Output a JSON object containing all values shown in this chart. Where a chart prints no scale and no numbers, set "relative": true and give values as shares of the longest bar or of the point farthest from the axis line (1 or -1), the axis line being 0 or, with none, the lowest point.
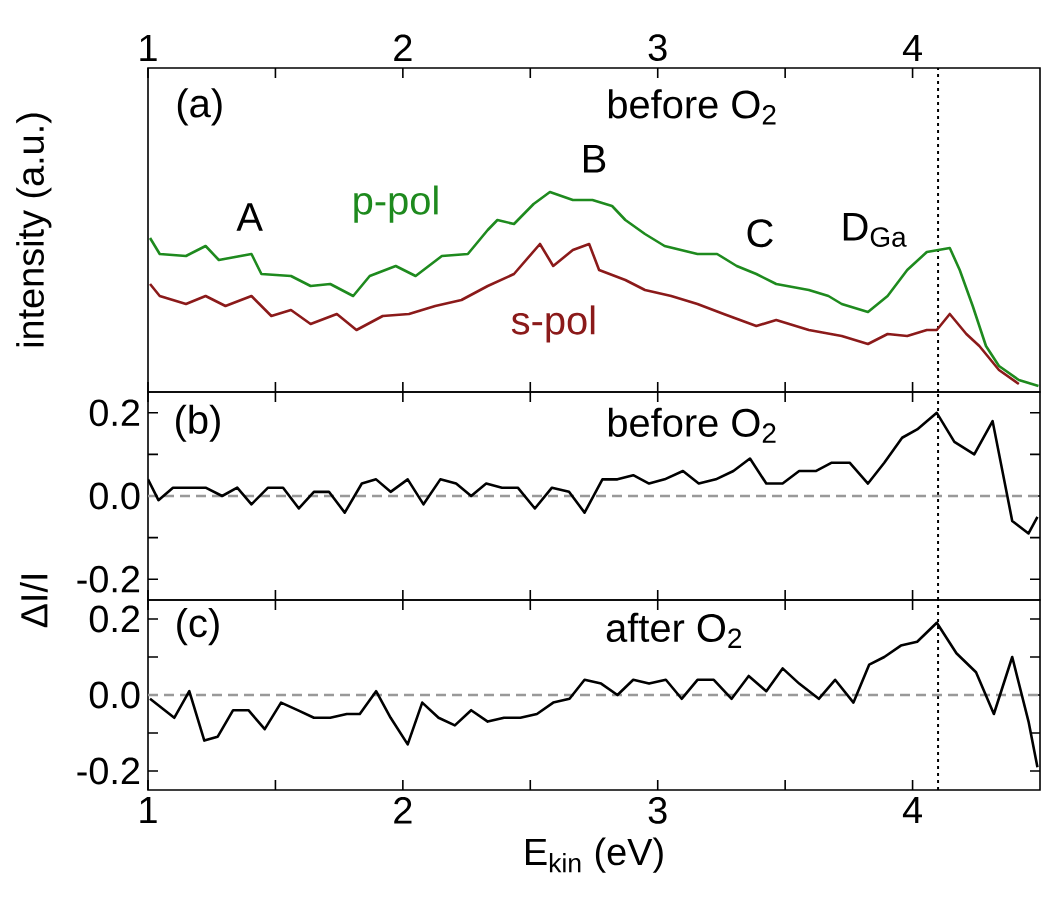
{
  "chart_data": [
    {
      "type": "line",
      "relative": true,
      "ylabel": "intensity (a.u.)",
      "xlim": [
        1,
        4.5
      ],
      "xticks": [
        1,
        {
          "value": 1.5,
          "label": null
        },
        2,
        {
          "value": 2.5,
          "label": null
        },
        3,
        {
          "value": 3.5,
          "label": null
        },
        4
      ],
      "annotations": [
        "(a)",
        "before O$_{2}$",
        "A",
        "B",
        "C",
        "D$_{Ga}$"
      ],
      "ref_lines": [
        {
          "axis": "x",
          "value": 4.1,
          "line_style": "dotted",
          "color": "#000000"
        }
      ],
      "series": [
        {
          "name": "p-pol",
          "color": "#1e8a1e",
          "x": [
            1.008,
            1.046,
            1.149,
            1.226,
            1.278,
            1.406,
            1.445,
            1.561,
            1.638,
            1.715,
            1.805,
            1.87,
            1.972,
            2.05,
            2.153,
            2.255,
            2.333,
            2.371,
            2.436,
            2.513,
            2.577,
            2.667,
            2.744,
            2.821,
            2.873,
            2.95,
            3.027,
            3.156,
            3.233,
            3.31,
            3.387,
            3.465,
            3.593,
            3.67,
            3.722,
            3.825,
            3.902,
            3.979,
            4.056,
            4.146,
            4.185,
            4.236,
            4.288,
            4.339,
            4.417,
            4.494
          ],
          "values": [
            0.77,
            0.69,
            0.68,
            0.73,
            0.66,
            0.69,
            0.59,
            0.58,
            0.53,
            0.54,
            0.48,
            0.58,
            0.63,
            0.58,
            0.68,
            0.69,
            0.81,
            0.86,
            0.84,
            0.94,
            1.0,
            0.96,
            0.96,
            0.93,
            0.86,
            0.79,
            0.73,
            0.69,
            0.69,
            0.63,
            0.59,
            0.54,
            0.51,
            0.48,
            0.44,
            0.4,
            0.48,
            0.61,
            0.7,
            0.72,
            0.61,
            0.43,
            0.23,
            0.13,
            0.06,
            0.03
          ]
        },
        {
          "name": "s-pol",
          "color": "#8b1a1a",
          "x": [
            1.008,
            1.046,
            1.149,
            1.226,
            1.304,
            1.406,
            1.484,
            1.561,
            1.638,
            1.741,
            1.818,
            1.921,
            2.024,
            2.127,
            2.23,
            2.333,
            2.436,
            2.538,
            2.59,
            2.667,
            2.731,
            2.77,
            2.873,
            2.95,
            3.053,
            3.156,
            3.259,
            3.387,
            3.465,
            3.593,
            3.722,
            3.825,
            3.902,
            3.979,
            4.056,
            4.095,
            4.146,
            4.211,
            4.262,
            4.339,
            4.417
          ],
          "values": [
            0.54,
            0.48,
            0.44,
            0.48,
            0.43,
            0.48,
            0.38,
            0.41,
            0.34,
            0.39,
            0.31,
            0.38,
            0.39,
            0.43,
            0.46,
            0.53,
            0.59,
            0.74,
            0.63,
            0.71,
            0.74,
            0.61,
            0.56,
            0.51,
            0.48,
            0.44,
            0.39,
            0.33,
            0.36,
            0.31,
            0.28,
            0.24,
            0.29,
            0.28,
            0.31,
            0.31,
            0.39,
            0.29,
            0.23,
            0.11,
            0.04
          ]
        }
      ]
    },
    {
      "type": "line",
      "tick_labels": "y",
      "ylabel": "ΔI/I",
      "xlim": [
        1,
        4.5
      ],
      "ylim": [
        -0.25,
        0.25
      ],
      "xticks": [
        1,
        {
          "value": 1.5,
          "label": null
        },
        2,
        {
          "value": 2.5,
          "label": null
        },
        3,
        {
          "value": 3.5,
          "label": null
        },
        4
      ],
      "yticks": [
        {
          "value": -0.2,
          "label": "-0.2"
        },
        {
          "value": -0.1,
          "label": null
        },
        {
          "value": 0,
          "label": "0.0"
        },
        {
          "value": 0.1,
          "label": null
        },
        {
          "value": 0.2,
          "label": "0.2"
        }
      ],
      "annotations": [
        "(b)",
        "before O$_{2}$"
      ],
      "ref_lines": [
        {
          "axis": "x",
          "value": 4.1,
          "line_style": "dotted",
          "color": "#000000"
        },
        {
          "axis": "y",
          "value": 0,
          "line_style": "dashed",
          "color": "#999999"
        }
      ],
      "series": [
        {
          "color": "#000000",
          "x": [
            1.0,
            1.041,
            1.098,
            1.162,
            1.226,
            1.291,
            1.35,
            1.406,
            1.471,
            1.53,
            1.592,
            1.651,
            1.71,
            1.772,
            1.839,
            1.895,
            1.952,
            2.019,
            2.081,
            2.147,
            2.209,
            2.268,
            2.327,
            2.389,
            2.451,
            2.518,
            2.585,
            2.652,
            2.713,
            2.783,
            2.842,
            2.904,
            2.966,
            3.027,
            3.099,
            3.161,
            3.228,
            3.297,
            3.362,
            3.426,
            3.49,
            3.555,
            3.62,
            3.683,
            3.753,
            3.825,
            3.889,
            3.959,
            4.018,
            4.095,
            4.164,
            4.242,
            4.314,
            4.391,
            4.455,
            4.49
          ],
          "values": [
            0.04,
            -0.01,
            0.02,
            0.02,
            0.02,
            0.0,
            0.02,
            -0.02,
            0.02,
            0.02,
            -0.03,
            0.01,
            0.01,
            -0.04,
            0.03,
            0.04,
            0.01,
            0.04,
            -0.02,
            0.04,
            0.03,
            0.0,
            0.03,
            0.02,
            0.02,
            -0.03,
            0.02,
            0.01,
            -0.04,
            0.04,
            0.04,
            0.05,
            0.03,
            0.04,
            0.06,
            0.03,
            0.04,
            0.06,
            0.09,
            0.03,
            0.03,
            0.06,
            0.06,
            0.08,
            0.08,
            0.03,
            0.08,
            0.14,
            0.16,
            0.2,
            0.13,
            0.1,
            0.18,
            -0.06,
            -0.09,
            -0.05
          ]
        }
      ]
    },
    {
      "type": "line",
      "ylabel": null,
      "xlabel": "E$_{kin}$ (eV)",
      "xlim": [
        1,
        4.5
      ],
      "ylim": [
        -0.25,
        0.25
      ],
      "xticks": [
        1,
        {
          "value": 1.5,
          "label": null
        },
        2,
        {
          "value": 2.5,
          "label": null
        },
        3,
        {
          "value": 3.5,
          "label": null
        },
        4
      ],
      "yticks": [
        {
          "value": -0.2,
          "label": "-0.2"
        },
        {
          "value": -0.1,
          "label": null
        },
        {
          "value": 0,
          "label": "0.0"
        },
        {
          "value": 0.1,
          "label": null
        },
        {
          "value": 0.2,
          "label": "0.2"
        }
      ],
      "annotations": [
        "(c)",
        "after O$_{2}$"
      ],
      "ref_lines": [
        {
          "axis": "x",
          "value": 4.1,
          "line_style": "dotted",
          "color": "#000000"
        },
        {
          "axis": "y",
          "value": 0,
          "line_style": "dashed",
          "color": "#999999"
        }
      ],
      "series": [
        {
          "color": "#000000",
          "x": [
            1.008,
            1.103,
            1.162,
            1.221,
            1.273,
            1.334,
            1.394,
            1.458,
            1.522,
            1.587,
            1.651,
            1.715,
            1.78,
            1.831,
            1.895,
            1.952,
            2.019,
            2.076,
            2.14,
            2.204,
            2.268,
            2.333,
            2.397,
            2.461,
            2.526,
            2.59,
            2.654,
            2.713,
            2.778,
            2.842,
            2.904,
            2.966,
            3.032,
            3.094,
            3.156,
            3.22,
            3.29,
            3.357,
            3.426,
            3.49,
            3.555,
            3.632,
            3.696,
            3.768,
            3.83,
            3.889,
            3.954,
            4.018,
            4.095,
            4.172,
            4.249,
            4.319,
            4.391,
            4.455,
            4.49
          ],
          "values": [
            -0.01,
            -0.06,
            0.01,
            -0.12,
            -0.11,
            -0.04,
            -0.04,
            -0.09,
            -0.02,
            -0.04,
            -0.06,
            -0.06,
            -0.05,
            -0.05,
            0.01,
            -0.06,
            -0.13,
            -0.02,
            -0.06,
            -0.08,
            -0.04,
            -0.07,
            -0.06,
            -0.06,
            -0.05,
            -0.02,
            -0.01,
            0.04,
            0.03,
            0.0,
            0.04,
            0.03,
            0.04,
            -0.01,
            0.04,
            0.04,
            -0.01,
            0.05,
            0.01,
            0.07,
            0.03,
            -0.01,
            0.04,
            -0.02,
            0.08,
            0.1,
            0.13,
            0.14,
            0.19,
            0.11,
            0.06,
            -0.05,
            0.1,
            -0.07,
            -0.19
          ]
        }
      ]
    }
  ]
}
